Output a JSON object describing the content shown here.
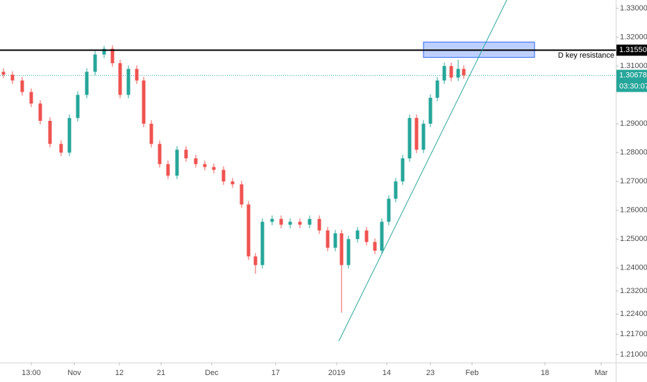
{
  "chart_data": {
    "type": "candlestick",
    "up_color": "#26a69a",
    "down_color": "#ef5350",
    "xlim": [
      0,
      887
    ],
    "ylim": [
      1.2072,
      1.3329
    ],
    "xticks": [
      {
        "value": 45,
        "label": "13:00"
      },
      {
        "value": 107,
        "label": "Nov"
      },
      {
        "value": 172,
        "label": "12"
      },
      {
        "value": 232,
        "label": "21"
      },
      {
        "value": 305,
        "label": "Dec"
      },
      {
        "value": 397,
        "label": "17"
      },
      {
        "value": 485,
        "label": "2019"
      },
      {
        "value": 557,
        "label": "14"
      },
      {
        "value": 620,
        "label": "23"
      },
      {
        "value": 680,
        "label": "Feb"
      },
      {
        "value": 785,
        "label": "18"
      },
      {
        "value": 866,
        "label": "Mar"
      }
    ],
    "yticks": [
      {
        "value": 1.33,
        "label": "1.33000"
      },
      {
        "value": 1.32,
        "label": "1.32000"
      },
      {
        "value": 1.31,
        "label": "1.31000"
      },
      {
        "value": 1.29,
        "label": "1.29000"
      },
      {
        "value": 1.28,
        "label": "1.28000"
      },
      {
        "value": 1.27,
        "label": "1.27000"
      },
      {
        "value": 1.26,
        "label": "1.26000"
      },
      {
        "value": 1.25,
        "label": "1.25000"
      },
      {
        "value": 1.24,
        "label": "1.24000"
      },
      {
        "value": 1.232,
        "label": "1.23200"
      },
      {
        "value": 1.224,
        "label": "1.22400"
      },
      {
        "value": 1.217,
        "label": "1.21700"
      },
      {
        "value": 1.21,
        "label": "1.21000"
      }
    ],
    "x": [
      5,
      18,
      32,
      45,
      58,
      72,
      88,
      100,
      112,
      125,
      137,
      150,
      162,
      173,
      185,
      197,
      207,
      218,
      230,
      242,
      255,
      268,
      282,
      295,
      308,
      322,
      335,
      348,
      358,
      368,
      378,
      392,
      405,
      418,
      432,
      446,
      460,
      472,
      483,
      492,
      502,
      515,
      528,
      540,
      550,
      560,
      570,
      580,
      590,
      600,
      610,
      620,
      630,
      640,
      650,
      660,
      668
    ],
    "open": [
      1.308,
      1.307,
      1.305,
      1.301,
      1.297,
      1.291,
      1.283,
      1.28,
      1.292,
      1.3,
      1.308,
      1.314,
      1.316,
      1.311,
      1.3,
      1.309,
      1.305,
      1.29,
      1.283,
      1.276,
      1.272,
      1.281,
      1.278,
      1.276,
      1.275,
      1.274,
      1.27,
      1.269,
      1.262,
      1.244,
      1.241,
      1.256,
      1.257,
      1.255,
      1.256,
      1.255,
      1.257,
      1.253,
      1.247,
      1.252,
      1.241,
      1.25,
      1.253,
      1.249,
      1.246,
      1.256,
      1.264,
      1.27,
      1.278,
      1.292,
      1.281,
      1.29,
      1.299,
      1.305,
      1.31,
      1.306,
      1.309
    ],
    "high": [
      1.3092,
      1.3082,
      1.3062,
      1.3022,
      1.2982,
      1.2922,
      1.2842,
      1.2932,
      1.3012,
      1.3092,
      1.3152,
      1.317,
      1.3172,
      1.3122,
      1.3102,
      1.3102,
      1.3062,
      1.2912,
      1.2842,
      1.2772,
      1.2822,
      1.2822,
      1.2792,
      1.2772,
      1.2762,
      1.2752,
      1.2712,
      1.2702,
      1.2632,
      1.2452,
      1.2572,
      1.2582,
      1.2582,
      1.2572,
      1.2572,
      1.2582,
      1.2582,
      1.2542,
      1.2532,
      1.2532,
      1.2512,
      1.2542,
      1.2542,
      1.2502,
      1.2572,
      1.2652,
      1.2712,
      1.2792,
      1.2932,
      1.2932,
      1.2912,
      1.3002,
      1.3062,
      1.3112,
      1.3112,
      1.3122,
      1.3102
    ],
    "low": [
      1.3058,
      1.3038,
      1.2998,
      1.2958,
      1.2898,
      1.2818,
      1.2788,
      1.2788,
      1.2908,
      1.2988,
      1.3068,
      1.3128,
      1.3098,
      1.2988,
      1.2988,
      1.3038,
      1.2888,
      1.2818,
      1.2748,
      1.2708,
      1.2708,
      1.2768,
      1.2748,
      1.2738,
      1.2728,
      1.2688,
      1.2678,
      1.2608,
      1.2428,
      1.238,
      1.2398,
      1.2548,
      1.2538,
      1.2538,
      1.2538,
      1.2538,
      1.2518,
      1.2458,
      1.2458,
      1.2245,
      1.2398,
      1.2488,
      1.2478,
      1.2448,
      1.2448,
      1.2548,
      1.2628,
      1.2688,
      1.2768,
      1.2798,
      1.2798,
      1.2888,
      1.2978,
      1.3038,
      1.3048,
      1.3048,
      1.3056
    ],
    "close": [
      1.307,
      1.305,
      1.301,
      1.297,
      1.291,
      1.283,
      1.28,
      1.292,
      1.3,
      1.308,
      1.314,
      1.316,
      1.311,
      1.3,
      1.309,
      1.305,
      1.29,
      1.283,
      1.276,
      1.272,
      1.281,
      1.278,
      1.276,
      1.275,
      1.274,
      1.27,
      1.269,
      1.262,
      1.244,
      1.241,
      1.256,
      1.257,
      1.255,
      1.256,
      1.255,
      1.257,
      1.253,
      1.247,
      1.252,
      1.241,
      1.25,
      1.253,
      1.249,
      1.246,
      1.256,
      1.264,
      1.27,
      1.278,
      1.292,
      1.281,
      1.29,
      1.299,
      1.305,
      1.31,
      1.306,
      1.309,
      1.3068
    ],
    "resistance": {
      "value": 1.3155,
      "label": "1.31550",
      "text": "D key resistance",
      "color": "#000000"
    },
    "current_price": {
      "value": 1.30678,
      "label": "1.30678",
      "countdown": "03:30:07",
      "color": "#26a69a"
    },
    "zone": {
      "x": [
        610,
        770
      ],
      "y": [
        1.313,
        1.3183
      ],
      "color": "#2962ff"
    },
    "trendline": {
      "x": [
        488,
        730
      ],
      "y": [
        1.2146,
        1.3329
      ],
      "color": "#26a69a"
    }
  }
}
